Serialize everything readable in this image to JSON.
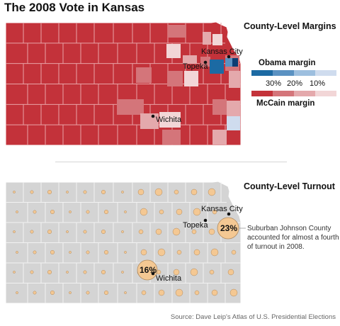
{
  "title": "The 2008 Vote in Kansas",
  "margins_map": {
    "heading": "County-Level Margins",
    "legend": {
      "obama_label": "Obama margin",
      "mccain_label": "McCain margin",
      "ticks": [
        "30%",
        "20%",
        "10%"
      ],
      "obama_colors": [
        "#1c6aa3",
        "#5b92c2",
        "#9dbfdf",
        "#cfdcee"
      ],
      "mccain_colors": [
        "#c4333a",
        "#d4757a",
        "#e4a9ac",
        "#f2d6d7"
      ]
    },
    "cities": [
      "Kansas City",
      "Topeka",
      "Wichita"
    ]
  },
  "turnout_map": {
    "heading": "County-Level Turnout",
    "cities": [
      "Kansas City",
      "Topeka",
      "Wichita"
    ],
    "callouts": [
      "23%",
      "16%"
    ],
    "note": "Suburban Johnson County accounted for almost a fourth of turnout in 2008."
  },
  "source": "Source: Dave Leip's Atlas of U.S. Presidential Elections"
}
